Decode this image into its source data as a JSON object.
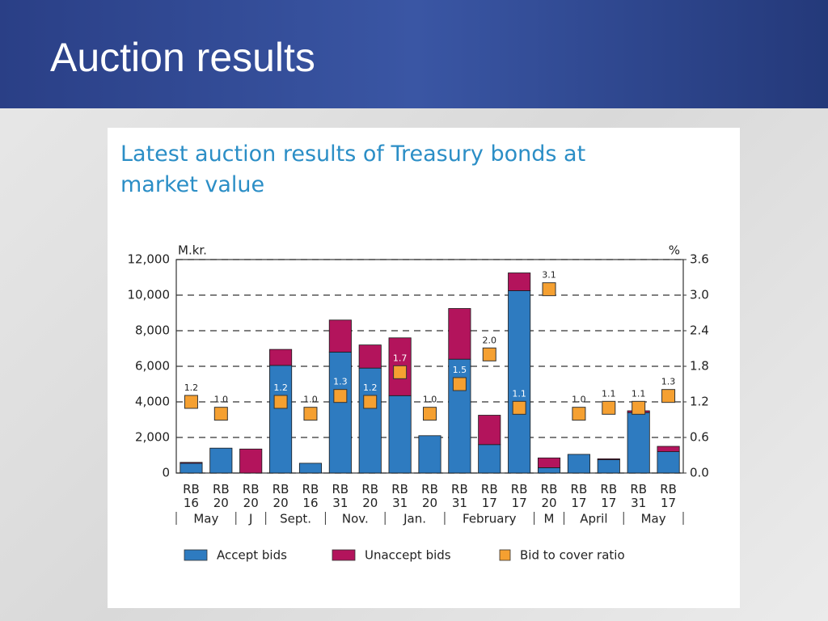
{
  "header": {
    "title": "Auction results"
  },
  "chart_data": {
    "type": "bar",
    "stacked": true,
    "title": "Latest auction results of Treasury bonds at market value",
    "y_label": "M.kr.",
    "y2_label": "%",
    "categories": [
      "RB 16",
      "RB 20",
      "RB 20",
      "RB 20",
      "RB 16",
      "RB 31",
      "RB 20",
      "RB 31",
      "RB 20",
      "RB 31",
      "RB 17",
      "RB 17",
      "RB 20",
      "RB 17",
      "RB 17",
      "RB 31",
      "RB 17"
    ],
    "groups": [
      "May",
      "May",
      "J",
      "Sept.",
      "Sept.",
      "Nov.",
      "Nov.",
      "Jan.",
      "Jan.",
      "February",
      "February",
      "February",
      "M",
      "April",
      "April",
      "May",
      "May"
    ],
    "series": [
      {
        "name": "Accept bids",
        "color": "#2e7bc0",
        "values": [
          550,
          1400,
          0,
          6050,
          550,
          6800,
          5900,
          4350,
          2100,
          6400,
          1600,
          10250,
          300,
          1050,
          750,
          3400,
          1200
        ]
      },
      {
        "name": "Unaccept bids",
        "color": "#b3145c",
        "values": [
          50,
          0,
          1350,
          900,
          0,
          1800,
          1300,
          3250,
          0,
          2850,
          1650,
          1000,
          550,
          0,
          50,
          100,
          300
        ]
      },
      {
        "name": "Bid to cover ratio",
        "color": "#f5a031",
        "axis": "y2",
        "values": [
          1.2,
          1.0,
          null,
          1.2,
          1.0,
          1.3,
          1.2,
          1.7,
          1.0,
          1.5,
          2.0,
          1.1,
          3.1,
          1.0,
          1.1,
          1.1,
          1.3
        ],
        "value_labels": [
          "1.2",
          "1.0",
          null,
          "1.2",
          "1.0",
          "1.3",
          "1.2",
          "1.7",
          "1.0",
          "1.5",
          "2.0",
          "1.1",
          "3.1",
          "1.0",
          "1.1",
          "1.1",
          "1.3"
        ]
      }
    ],
    "ylim": [
      0,
      12000
    ],
    "yticks": [
      0,
      {
        "value": 2000,
        "label": "2,000"
      },
      {
        "value": 4000,
        "label": "4,000"
      },
      {
        "value": 6000,
        "label": "6,000"
      },
      {
        "value": 8000,
        "label": "8,000"
      },
      {
        "value": 10000,
        "label": "10,000"
      },
      {
        "value": 12000,
        "label": "12,000"
      }
    ],
    "y2lim": [
      0,
      3.6
    ],
    "y2ticks": [
      {
        "value": 0,
        "label": "0.0"
      },
      0.6,
      1.2,
      1.8,
      2.4,
      {
        "value": 3,
        "label": "3.0"
      },
      3.6
    ],
    "grid": true,
    "legend": "bottom"
  }
}
